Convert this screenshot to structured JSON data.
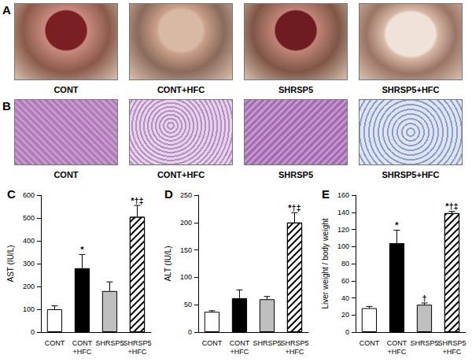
{
  "figure": {
    "panels": [
      {
        "label": "A",
        "captions": [
          "CONT",
          "CONT+HFC",
          "SHRSP5",
          "SHRSP5+HFC"
        ]
      },
      {
        "label": "B",
        "captions": [
          "CONT",
          "CONT+HFC",
          "SHRSP5",
          "SHRSP5+HFC"
        ]
      }
    ]
  },
  "chart_data": [
    {
      "type": "bar",
      "title": "C",
      "y_label": "AST (IU/L)",
      "categories": [
        "CONT",
        "CONT\n+HFC",
        "SHRSP5",
        "SHRSP5\n+HFC"
      ],
      "values": [
        100,
        280,
        180,
        505
      ],
      "errors": [
        15,
        60,
        40,
        50
      ],
      "colors": [
        "#ffffff",
        "#000000",
        "#bfbfbf",
        "#ffffff"
      ],
      "annotations": [
        {
          "category": "CONT\n+HFC",
          "text": "*"
        },
        {
          "category": "SHRSP5\n+HFC",
          "text": "*†‡"
        }
      ],
      "ylim": [
        0,
        600
      ],
      "yticks": [
        0,
        100,
        200,
        300,
        400,
        500,
        600
      ],
      "grid": false
    },
    {
      "type": "bar",
      "title": "D",
      "y_label": "ALT (IU/L)",
      "categories": [
        "CONT",
        "CONT\n+HFC",
        "SHRSP5",
        "SHRSP5\n+HFC"
      ],
      "values": [
        37,
        62,
        60,
        200
      ],
      "errors": [
        2,
        15,
        5,
        18
      ],
      "colors": [
        "#ffffff",
        "#000000",
        "#bfbfbf",
        "#ffffff"
      ],
      "annotations": [
        {
          "category": "SHRSP5\n+HFC",
          "text": "*†‡"
        }
      ],
      "ylim": [
        0,
        250
      ],
      "yticks": [
        0,
        50,
        100,
        150,
        200,
        250
      ],
      "grid": false
    },
    {
      "type": "bar",
      "title": "E",
      "y_label": "Liver weight / body weight",
      "categories": [
        "CONT",
        "CONT\n+HFC",
        "SHRSP5",
        "SHRSP5\n+HFC"
      ],
      "values": [
        28,
        104,
        32,
        139
      ],
      "errors": [
        2,
        15,
        2,
        2
      ],
      "colors": [
        "#ffffff",
        "#000000",
        "#bfbfbf",
        "#ffffff"
      ],
      "annotations": [
        {
          "category": "CONT\n+HFC",
          "text": "*"
        },
        {
          "category": "SHRSP5",
          "text": "†"
        },
        {
          "category": "SHRSP5\n+HFC",
          "text": "*†‡"
        }
      ],
      "ylim": [
        0,
        160
      ],
      "yticks": [
        0,
        20,
        40,
        60,
        80,
        100,
        120,
        140,
        160
      ],
      "grid": false
    }
  ]
}
